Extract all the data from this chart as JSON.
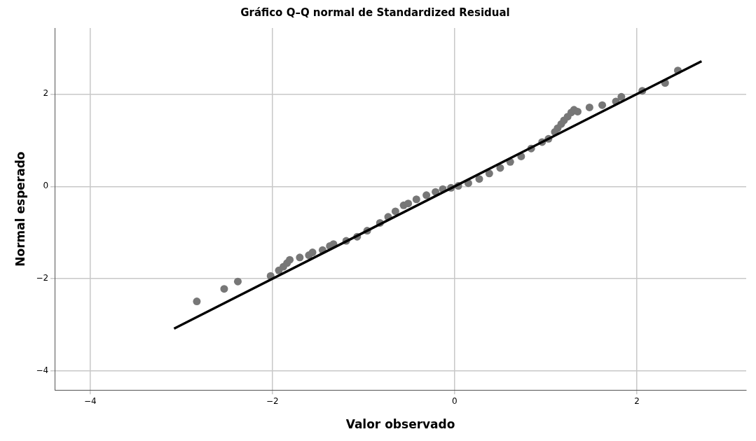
{
  "chart_data": {
    "type": "scatter",
    "title": "Gráfico Q–Q normal de Standardized Residual",
    "xlabel": "Valor observado",
    "ylabel": "Normal esperado",
    "xlim": [
      -4.39,
      3.2
    ],
    "ylim": [
      -4.41,
      3.43
    ],
    "xticks": [
      {
        "value": -4,
        "label": "−4"
      },
      {
        "value": -2,
        "label": "−2"
      },
      0,
      2
    ],
    "yticks": [
      {
        "value": -4,
        "label": "−4"
      },
      {
        "value": -2,
        "label": "−2"
      },
      0,
      2
    ],
    "grid": true,
    "legend": false,
    "series": [
      {
        "marker": "circle",
        "color": "#777777",
        "x": [
          -2.83,
          -2.53,
          -2.38,
          -2.02,
          -1.93,
          -1.88,
          -1.84,
          -1.81,
          -1.7,
          -1.6,
          -1.56,
          -1.45,
          -1.37,
          -1.33,
          -1.19,
          -1.07,
          -0.96,
          -0.82,
          -0.73,
          -0.65,
          -0.56,
          -0.51,
          -0.42,
          -0.31,
          -0.21,
          -0.13,
          -0.04,
          0.04,
          0.15,
          0.27,
          0.38,
          0.5,
          0.61,
          0.73,
          0.84,
          0.96,
          1.03,
          1.1,
          1.13,
          1.17,
          1.2,
          1.24,
          1.28,
          1.31,
          1.35,
          1.48,
          1.62,
          1.77,
          1.83,
          2.06,
          2.31,
          2.45
        ],
        "values": [
          -2.49,
          -2.22,
          -2.06,
          -1.94,
          -1.82,
          -1.74,
          -1.66,
          -1.59,
          -1.54,
          -1.49,
          -1.43,
          -1.38,
          -1.29,
          -1.25,
          -1.18,
          -1.09,
          -0.96,
          -0.79,
          -0.66,
          -0.54,
          -0.41,
          -0.37,
          -0.28,
          -0.19,
          -0.12,
          -0.06,
          -0.03,
          0.01,
          0.07,
          0.16,
          0.28,
          0.4,
          0.53,
          0.65,
          0.82,
          0.96,
          1.03,
          1.18,
          1.26,
          1.35,
          1.43,
          1.51,
          1.6,
          1.66,
          1.62,
          1.71,
          1.76,
          1.84,
          1.94,
          2.07,
          2.24,
          2.51
        ]
      },
      {
        "type": "line",
        "color": "#000000",
        "x": [
          -3.08,
          2.71
        ],
        "values": [
          -3.08,
          2.71
        ],
        "line_style": "solid",
        "marker": "none"
      }
    ]
  }
}
